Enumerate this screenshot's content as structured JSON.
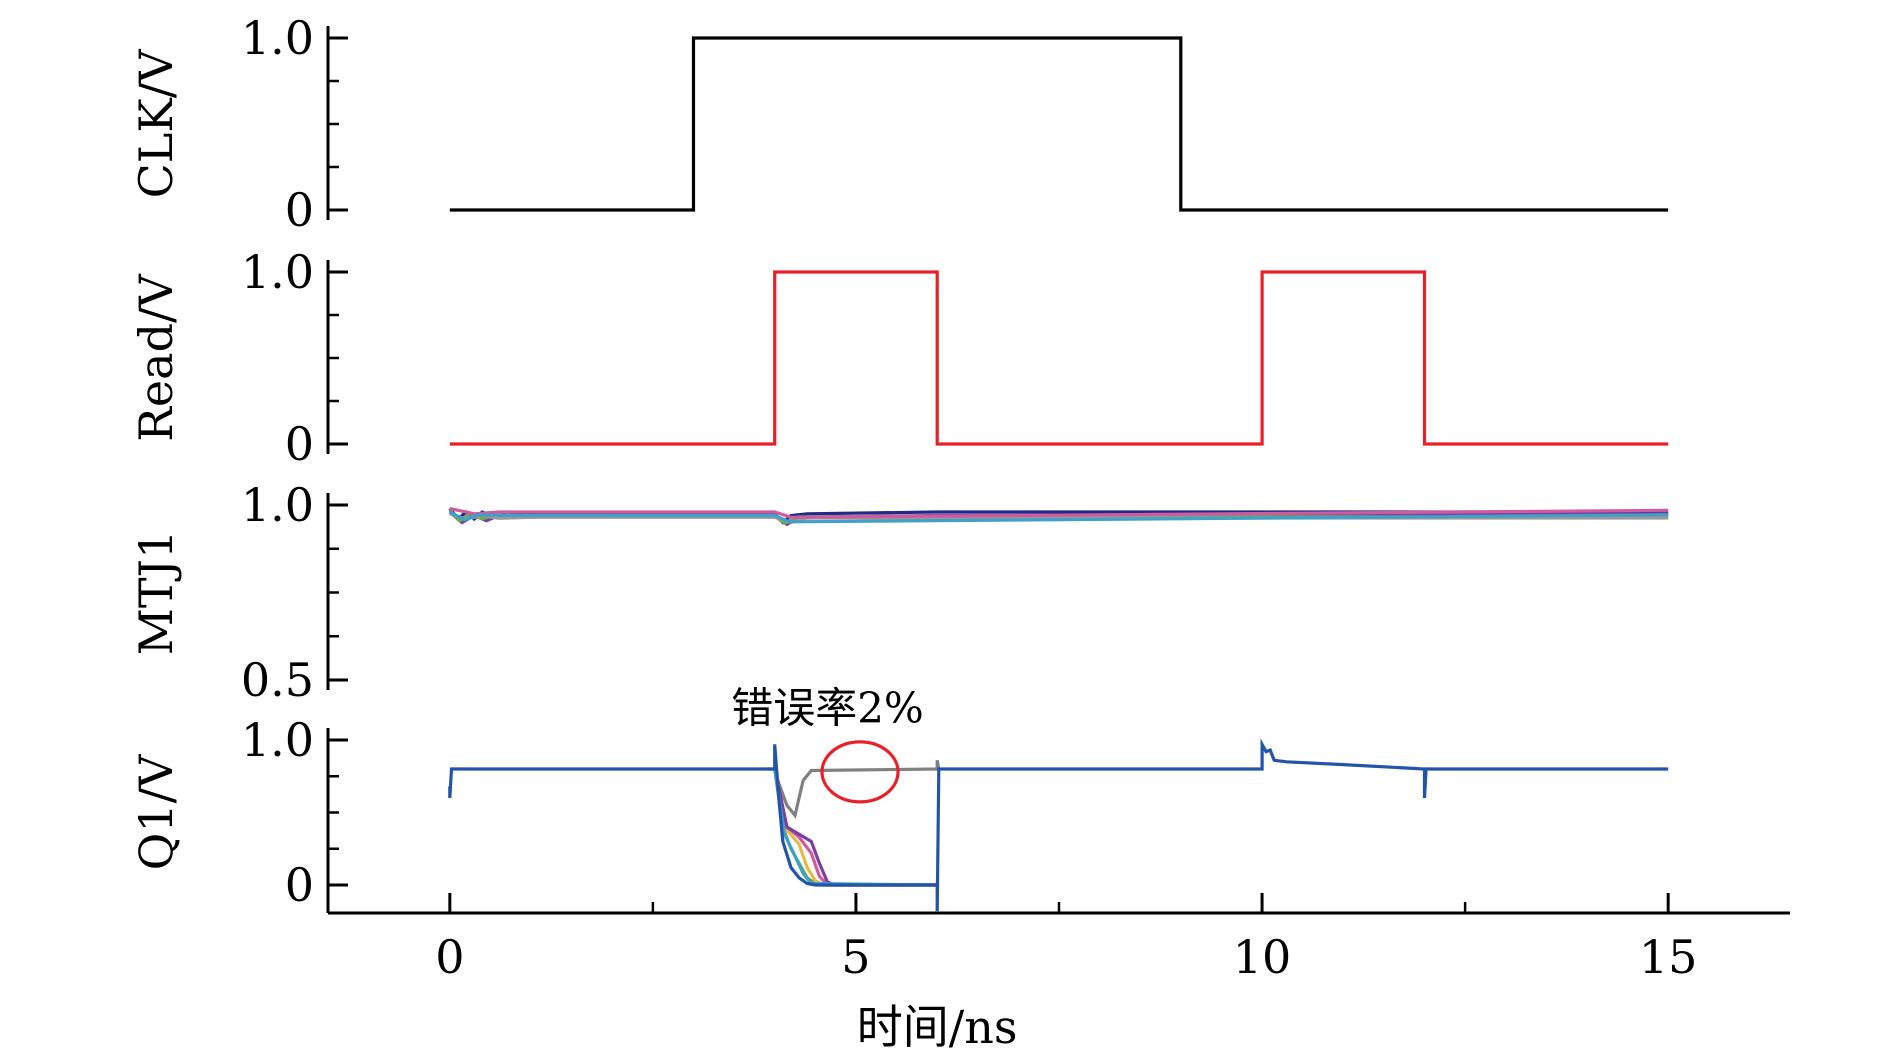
{
  "chart_data": [
    {
      "type": "line",
      "ylabel": "CLK/V",
      "ylim": [
        0,
        1.0
      ],
      "yticks": [
        {
          "v": 0,
          "label": "0"
        },
        {
          "v": 1.0,
          "label": "1.0"
        }
      ],
      "series": [
        {
          "color": "#000000",
          "x": [
            0,
            3,
            3,
            9,
            9,
            15
          ],
          "y": [
            0,
            0,
            1,
            1,
            0,
            0
          ]
        }
      ]
    },
    {
      "type": "line",
      "ylabel": "Read/V",
      "ylim": [
        0,
        1.0
      ],
      "yticks": [
        {
          "v": 0,
          "label": "0"
        },
        {
          "v": 1.0,
          "label": "1.0"
        }
      ],
      "series": [
        {
          "color": "#e8202a",
          "x": [
            0,
            4,
            4,
            6,
            6,
            10,
            10,
            12,
            12,
            15
          ],
          "y": [
            0,
            0,
            1,
            1,
            0,
            0,
            1,
            1,
            0,
            0
          ]
        }
      ]
    },
    {
      "type": "line",
      "ylabel": "MTJ1",
      "ylim": [
        0.5,
        1.0
      ],
      "yticks": [
        {
          "v": 0.5,
          "label": "0.5"
        },
        {
          "v": 1.0,
          "label": "1.0"
        }
      ],
      "series": [
        {
          "color": "#1f2a8a",
          "x": [
            0,
            0.1,
            0.2,
            0.3,
            0.4,
            0.5,
            0.7,
            1.0,
            2.0,
            4.0,
            4.1,
            4.2,
            4.4,
            6.0,
            10.0,
            15.0
          ],
          "y": [
            0.99,
            0.96,
            0.98,
            0.96,
            0.98,
            0.97,
            0.98,
            0.975,
            0.975,
            0.975,
            0.95,
            0.97,
            0.975,
            0.98,
            0.98,
            0.98
          ]
        },
        {
          "color": "#7b3fa0",
          "x": [
            0,
            0.15,
            0.3,
            0.45,
            0.6,
            0.9,
            2.0,
            4.0,
            4.15,
            4.3,
            6.0,
            15.0
          ],
          "y": [
            0.98,
            0.95,
            0.97,
            0.955,
            0.97,
            0.965,
            0.97,
            0.97,
            0.945,
            0.965,
            0.97,
            0.975
          ]
        },
        {
          "color": "#6aa84f",
          "x": [
            0,
            0.12,
            0.25,
            0.4,
            0.55,
            0.8,
            2.0,
            4.0,
            4.12,
            4.3,
            6.0,
            15.0
          ],
          "y": [
            0.985,
            0.955,
            0.975,
            0.96,
            0.972,
            0.968,
            0.968,
            0.968,
            0.948,
            0.966,
            0.968,
            0.965
          ]
        },
        {
          "color": "#9a9a9a",
          "x": [
            0,
            0.2,
            0.4,
            0.6,
            1.0,
            4.0,
            4.2,
            4.4,
            15.0
          ],
          "y": [
            0.975,
            0.96,
            0.97,
            0.962,
            0.965,
            0.965,
            0.95,
            0.963,
            0.963
          ]
        },
        {
          "color": "#d05aa0",
          "x": [
            0,
            0.3,
            0.6,
            4.0,
            4.2,
            15.0
          ],
          "y": [
            0.99,
            0.975,
            0.98,
            0.98,
            0.965,
            0.985
          ]
        },
        {
          "color": "#3fa0c8",
          "x": [
            0,
            0.18,
            0.35,
            0.7,
            4.0,
            4.18,
            15.0
          ],
          "y": [
            0.98,
            0.958,
            0.972,
            0.97,
            0.97,
            0.952,
            0.972
          ]
        }
      ]
    },
    {
      "type": "line",
      "ylabel": "Q1/V",
      "xlabel": "时间/ns",
      "xlim": [
        -1.5,
        16.5
      ],
      "xticks": [
        {
          "v": 0,
          "label": "0"
        },
        {
          "v": 5,
          "label": "5"
        },
        {
          "v": 10,
          "label": "10"
        },
        {
          "v": 15,
          "label": "15"
        }
      ],
      "ylim": [
        0,
        1.0
      ],
      "yticks": [
        {
          "v": 0,
          "label": "0"
        },
        {
          "v": 1.0,
          "label": "1.0"
        }
      ],
      "annotation": "错误率2%",
      "annotation_circle_color": "#e8202a",
      "series": [
        {
          "color": "#808080",
          "x": [
            3.9,
            4.0,
            4.05,
            4.15,
            4.25,
            4.35,
            4.45,
            6.0,
            6.0,
            6.02
          ],
          "y": [
            0.8,
            0.8,
            0.7,
            0.55,
            0.48,
            0.72,
            0.79,
            0.8,
            0.86,
            0.8
          ]
        },
        {
          "color": "#6aa84f",
          "x": [
            4.0,
            4.1,
            4.2,
            4.3,
            4.4,
            4.5,
            4.6,
            6.0
          ],
          "y": [
            0.8,
            0.4,
            0.25,
            0.15,
            0.05,
            0.01,
            0.0,
            0.0
          ]
        },
        {
          "color": "#e6b84a",
          "x": [
            4.0,
            4.15,
            4.3,
            4.4,
            4.5,
            4.6,
            6.0
          ],
          "y": [
            0.8,
            0.38,
            0.28,
            0.12,
            0.03,
            0.0,
            0.0
          ]
        },
        {
          "color": "#d05aa0",
          "x": [
            4.0,
            4.15,
            4.3,
            4.45,
            4.55,
            4.65,
            6.0
          ],
          "y": [
            0.8,
            0.4,
            0.33,
            0.22,
            0.06,
            0.0,
            0.0
          ]
        },
        {
          "color": "#7b3fa0",
          "x": [
            4.0,
            4.15,
            4.3,
            4.45,
            4.55,
            4.65,
            4.75,
            6.0
          ],
          "y": [
            0.8,
            0.4,
            0.35,
            0.3,
            0.15,
            0.02,
            0.0,
            0.0
          ]
        },
        {
          "color": "#3fa0c8",
          "x": [
            4.0,
            4.12,
            4.25,
            4.35,
            4.45,
            6.0
          ],
          "y": [
            0.8,
            0.35,
            0.2,
            0.08,
            0.01,
            0.0
          ]
        },
        {
          "color": "#2255aa",
          "x": [
            0,
            0.0,
            0.02,
            0.05,
            4.0,
            4.0,
            4.05,
            4.1,
            4.2,
            4.3,
            4.4,
            4.5,
            6.0,
            6.0,
            6.02,
            10.0,
            10.0,
            10.05,
            10.1,
            10.15,
            10.3,
            11.0,
            12.0,
            12.0,
            12.0,
            12.02,
            15.0
          ],
          "y": [
            0.68,
            0.6,
            0.8,
            0.8,
            0.8,
            0.97,
            0.6,
            0.3,
            0.12,
            0.05,
            0.01,
            0.0,
            0.0,
            -0.18,
            0.8,
            0.8,
            0.97,
            0.92,
            0.93,
            0.86,
            0.85,
            0.83,
            0.8,
            0.8,
            0.6,
            0.8,
            0.8
          ]
        }
      ]
    }
  ]
}
